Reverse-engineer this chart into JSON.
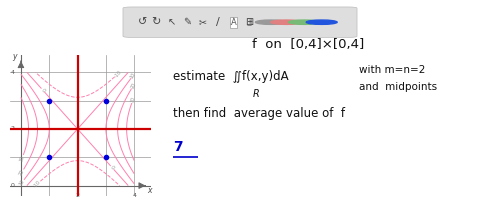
{
  "bg_color": "#ffffff",
  "fig_width": 4.8,
  "fig_height": 2.22,
  "dpi": 100,
  "graph_xlim": [
    -0.4,
    4.6
  ],
  "graph_ylim": [
    -0.35,
    4.6
  ],
  "grid_lines": [
    0,
    1,
    2,
    3,
    4
  ],
  "red_vlines": [
    2
  ],
  "red_hlines": [
    2
  ],
  "midpoints": [
    [
      1,
      3
    ],
    [
      3,
      3
    ],
    [
      1,
      1
    ],
    [
      3,
      1
    ]
  ],
  "midpoint_color": "#0000dd",
  "contour_levels": [
    -10,
    0,
    10,
    20,
    30
  ],
  "contour_color": "#ff80b0",
  "contour_label_color": "#999999",
  "red_line_color": "#cc0000",
  "grid_color": "#999999",
  "axis_color": "#555555"
}
